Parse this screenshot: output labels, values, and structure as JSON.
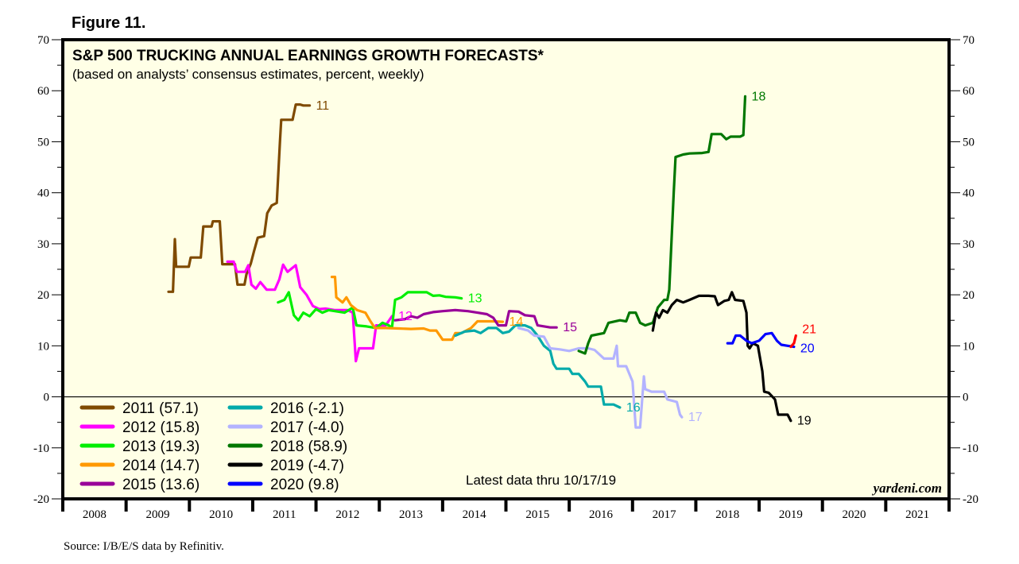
{
  "figure_label": "Figure 11.",
  "source": "Source: I/B/E/S data by Refinitiv.",
  "chart_data": {
    "type": "line",
    "title": "S&P 500 TRUCKING ANNUAL EARNINGS GROWTH FORECASTS*",
    "subtitle": "(based on analysts’ consensus estimates, percent, weekly)",
    "xlabel": "",
    "ylabel": "",
    "xlim": [
      2008,
      2022
    ],
    "ylim": [
      -20,
      70
    ],
    "yticks": [
      70,
      60,
      50,
      40,
      30,
      20,
      10,
      0,
      -10,
      -20
    ],
    "ytick_labels": [
      "70",
      "60",
      "50",
      "40",
      "30",
      "20",
      "10",
      "0",
      "-10",
      "-20"
    ],
    "xtick_labels": [
      "2008",
      "2009",
      "2010",
      "2011",
      "2012",
      "2013",
      "2014",
      "2015",
      "2016",
      "2017",
      "2018",
      "2019",
      "2020",
      "2021"
    ],
    "zero_line": true,
    "grid": false,
    "background": "#ffffe6",
    "annotation": "Latest data thru 10/17/19",
    "brand": "yardeni.com",
    "legend_position": "bottom-left",
    "series": [
      {
        "name": "2011",
        "legend": "2011 (57.1)",
        "end_label": "11",
        "color": "#7f4a00",
        "in_legend": true,
        "points": [
          [
            2009.67,
            20.6
          ],
          [
            2009.74,
            20.6
          ],
          [
            2009.77,
            30.9
          ],
          [
            2009.79,
            25.5
          ],
          [
            2009.84,
            25.5
          ],
          [
            2009.99,
            25.5
          ],
          [
            2010.02,
            27.3
          ],
          [
            2010.18,
            27.3
          ],
          [
            2010.22,
            33.4
          ],
          [
            2010.35,
            33.4
          ],
          [
            2010.37,
            34.4
          ],
          [
            2010.48,
            34.4
          ],
          [
            2010.52,
            26.0
          ],
          [
            2010.72,
            26.0
          ],
          [
            2010.76,
            22.0
          ],
          [
            2010.87,
            22.0
          ],
          [
            2010.9,
            24.0
          ],
          [
            2010.97,
            26.1
          ],
          [
            2011.02,
            28.5
          ],
          [
            2011.08,
            31.2
          ],
          [
            2011.18,
            31.5
          ],
          [
            2011.23,
            36.0
          ],
          [
            2011.3,
            37.5
          ],
          [
            2011.38,
            38.0
          ],
          [
            2011.43,
            50.0
          ],
          [
            2011.45,
            54.3
          ],
          [
            2011.63,
            54.3
          ],
          [
            2011.68,
            57.3
          ],
          [
            2011.75,
            57.3
          ],
          [
            2011.8,
            57.1
          ],
          [
            2011.9,
            57.1
          ]
        ]
      },
      {
        "name": "2012",
        "legend": "2012 (15.8)",
        "end_label": "12",
        "color": "#ff00ff",
        "in_legend": true,
        "points": [
          [
            2010.6,
            26.5
          ],
          [
            2010.7,
            26.5
          ],
          [
            2010.75,
            24.5
          ],
          [
            2010.88,
            24.5
          ],
          [
            2010.93,
            25.8
          ],
          [
            2010.98,
            22.0
          ],
          [
            2011.05,
            21.2
          ],
          [
            2011.12,
            22.5
          ],
          [
            2011.22,
            21.0
          ],
          [
            2011.35,
            21.0
          ],
          [
            2011.42,
            23.0
          ],
          [
            2011.48,
            25.9
          ],
          [
            2011.55,
            24.5
          ],
          [
            2011.68,
            25.8
          ],
          [
            2011.75,
            21.5
          ],
          [
            2011.85,
            20.0
          ],
          [
            2011.95,
            17.8
          ],
          [
            2012.05,
            17.2
          ],
          [
            2012.15,
            17.3
          ],
          [
            2012.3,
            17.0
          ],
          [
            2012.5,
            17.0
          ],
          [
            2012.58,
            16.5
          ],
          [
            2012.63,
            7.0
          ],
          [
            2012.68,
            9.5
          ],
          [
            2012.9,
            9.5
          ],
          [
            2012.95,
            14.0
          ],
          [
            2013.1,
            14.0
          ],
          [
            2013.2,
            15.8
          ]
        ]
      },
      {
        "name": "2013",
        "legend": "2013 (19.3)",
        "end_label": "13",
        "color": "#00ee00",
        "in_legend": true,
        "points": [
          [
            2011.4,
            18.5
          ],
          [
            2011.5,
            19.0
          ],
          [
            2011.57,
            20.5
          ],
          [
            2011.65,
            16.0
          ],
          [
            2011.72,
            15.0
          ],
          [
            2011.8,
            16.5
          ],
          [
            2011.9,
            15.8
          ],
          [
            2012.0,
            17.2
          ],
          [
            2012.1,
            16.5
          ],
          [
            2012.2,
            17.0
          ],
          [
            2012.3,
            16.8
          ],
          [
            2012.45,
            16.5
          ],
          [
            2012.58,
            17.5
          ],
          [
            2012.64,
            14.0
          ],
          [
            2012.8,
            13.8
          ],
          [
            2012.95,
            13.5
          ],
          [
            2013.05,
            14.5
          ],
          [
            2013.15,
            14.0
          ],
          [
            2013.2,
            13.5
          ],
          [
            2013.25,
            19.0
          ],
          [
            2013.35,
            19.5
          ],
          [
            2013.45,
            20.5
          ],
          [
            2013.6,
            20.5
          ],
          [
            2013.75,
            20.5
          ],
          [
            2013.85,
            19.8
          ],
          [
            2013.95,
            19.9
          ],
          [
            2014.05,
            19.6
          ],
          [
            2014.2,
            19.5
          ],
          [
            2014.3,
            19.3
          ]
        ]
      },
      {
        "name": "2014",
        "legend": "2014 (14.7)",
        "end_label": "14",
        "color": "#ff9900",
        "in_legend": true,
        "points": [
          [
            2012.25,
            23.5
          ],
          [
            2012.3,
            23.5
          ],
          [
            2012.32,
            19.5
          ],
          [
            2012.42,
            18.5
          ],
          [
            2012.48,
            19.5
          ],
          [
            2012.55,
            18.0
          ],
          [
            2012.65,
            17.0
          ],
          [
            2012.78,
            16.5
          ],
          [
            2012.85,
            15.0
          ],
          [
            2012.93,
            13.5
          ],
          [
            2013.1,
            13.5
          ],
          [
            2013.3,
            13.4
          ],
          [
            2013.5,
            13.3
          ],
          [
            2013.7,
            13.4
          ],
          [
            2013.8,
            13.0
          ],
          [
            2013.9,
            13.0
          ],
          [
            2014.0,
            11.2
          ],
          [
            2014.15,
            11.2
          ],
          [
            2014.2,
            12.5
          ],
          [
            2014.3,
            12.5
          ],
          [
            2014.45,
            13.5
          ],
          [
            2014.55,
            14.8
          ],
          [
            2014.8,
            14.8
          ],
          [
            2014.95,
            14.7
          ]
        ]
      },
      {
        "name": "2015",
        "legend": "2015 (13.6)",
        "end_label": "15",
        "color": "#990099",
        "in_legend": true,
        "points": [
          [
            2013.25,
            15.0
          ],
          [
            2013.4,
            15.2
          ],
          [
            2013.5,
            15.8
          ],
          [
            2013.6,
            15.5
          ],
          [
            2013.7,
            16.2
          ],
          [
            2013.85,
            16.6
          ],
          [
            2014.0,
            16.8
          ],
          [
            2014.2,
            17.0
          ],
          [
            2014.4,
            16.8
          ],
          [
            2014.55,
            16.5
          ],
          [
            2014.7,
            16.2
          ],
          [
            2014.8,
            15.5
          ],
          [
            2014.88,
            14.0
          ],
          [
            2015.0,
            14.0
          ],
          [
            2015.05,
            16.8
          ],
          [
            2015.2,
            16.7
          ],
          [
            2015.3,
            16.0
          ],
          [
            2015.45,
            15.8
          ],
          [
            2015.5,
            14.0
          ],
          [
            2015.7,
            13.6
          ],
          [
            2015.8,
            13.6
          ]
        ]
      },
      {
        "name": "2016",
        "legend": "2016 (-2.1)",
        "end_label": "16",
        "color": "#00aaaa",
        "in_legend": true,
        "points": [
          [
            2014.2,
            12.0
          ],
          [
            2014.35,
            12.8
          ],
          [
            2014.5,
            13.0
          ],
          [
            2014.6,
            12.5
          ],
          [
            2014.72,
            13.5
          ],
          [
            2014.85,
            13.5
          ],
          [
            2014.95,
            12.5
          ],
          [
            2015.05,
            12.8
          ],
          [
            2015.15,
            14.0
          ],
          [
            2015.3,
            14.0
          ],
          [
            2015.4,
            13.5
          ],
          [
            2015.5,
            12.0
          ],
          [
            2015.6,
            10.0
          ],
          [
            2015.7,
            9.0
          ],
          [
            2015.75,
            6.5
          ],
          [
            2015.8,
            5.5
          ],
          [
            2016.0,
            5.5
          ],
          [
            2016.05,
            4.5
          ],
          [
            2016.15,
            4.5
          ],
          [
            2016.25,
            3.0
          ],
          [
            2016.3,
            2.0
          ],
          [
            2016.5,
            2.0
          ],
          [
            2016.55,
            -1.5
          ],
          [
            2016.7,
            -1.5
          ],
          [
            2016.8,
            -2.1
          ]
        ]
      },
      {
        "name": "2017",
        "legend": "2017 (-4.0)",
        "end_label": "17",
        "color": "#b3b3ff",
        "in_legend": true,
        "points": [
          [
            2015.2,
            13.5
          ],
          [
            2015.35,
            13.0
          ],
          [
            2015.45,
            12.0
          ],
          [
            2015.6,
            11.8
          ],
          [
            2015.7,
            9.5
          ],
          [
            2015.85,
            9.3
          ],
          [
            2016.0,
            9.0
          ],
          [
            2016.15,
            9.5
          ],
          [
            2016.3,
            9.5
          ],
          [
            2016.4,
            9.2
          ],
          [
            2016.55,
            7.5
          ],
          [
            2016.7,
            7.5
          ],
          [
            2016.75,
            10.0
          ],
          [
            2016.77,
            6.0
          ],
          [
            2016.9,
            6.0
          ],
          [
            2017.0,
            3.0
          ],
          [
            2017.05,
            -6.0
          ],
          [
            2017.12,
            -6.0
          ],
          [
            2017.15,
            -1.0
          ],
          [
            2017.18,
            4.0
          ],
          [
            2017.2,
            1.5
          ],
          [
            2017.3,
            1.0
          ],
          [
            2017.5,
            1.0
          ],
          [
            2017.55,
            -0.5
          ],
          [
            2017.7,
            -1.0
          ],
          [
            2017.75,
            -3.5
          ],
          [
            2017.78,
            -4.0
          ]
        ]
      },
      {
        "name": "2018",
        "legend": "2018 (58.9)",
        "end_label": "18",
        "color": "#007700",
        "in_legend": true,
        "points": [
          [
            2016.15,
            9.0
          ],
          [
            2016.25,
            8.5
          ],
          [
            2016.3,
            10.5
          ],
          [
            2016.35,
            12.0
          ],
          [
            2016.55,
            12.5
          ],
          [
            2016.62,
            14.5
          ],
          [
            2016.8,
            15.0
          ],
          [
            2016.9,
            14.8
          ],
          [
            2016.95,
            16.5
          ],
          [
            2017.05,
            16.5
          ],
          [
            2017.12,
            14.5
          ],
          [
            2017.2,
            14.0
          ],
          [
            2017.32,
            14.5
          ],
          [
            2017.4,
            17.5
          ],
          [
            2017.5,
            19.0
          ],
          [
            2017.55,
            19.0
          ],
          [
            2017.58,
            21.0
          ],
          [
            2017.65,
            40.0
          ],
          [
            2017.68,
            47.0
          ],
          [
            2017.8,
            47.5
          ],
          [
            2017.9,
            47.7
          ],
          [
            2018.1,
            47.8
          ],
          [
            2018.2,
            48.0
          ],
          [
            2018.25,
            51.5
          ],
          [
            2018.4,
            51.5
          ],
          [
            2018.48,
            50.5
          ],
          [
            2018.55,
            51.0
          ],
          [
            2018.7,
            51.0
          ],
          [
            2018.75,
            51.3
          ],
          [
            2018.78,
            58.9
          ]
        ]
      },
      {
        "name": "2019",
        "legend": "2019 (-4.7)",
        "end_label": "19",
        "color": "#000000",
        "in_legend": true,
        "points": [
          [
            2017.32,
            13.0
          ],
          [
            2017.37,
            16.5
          ],
          [
            2017.42,
            15.5
          ],
          [
            2017.48,
            17.0
          ],
          [
            2017.55,
            16.5
          ],
          [
            2017.62,
            18.0
          ],
          [
            2017.7,
            19.0
          ],
          [
            2017.8,
            18.5
          ],
          [
            2017.9,
            19.0
          ],
          [
            2018.05,
            19.8
          ],
          [
            2018.2,
            19.8
          ],
          [
            2018.3,
            19.7
          ],
          [
            2018.35,
            18.0
          ],
          [
            2018.45,
            18.8
          ],
          [
            2018.52,
            19.0
          ],
          [
            2018.57,
            20.5
          ],
          [
            2018.62,
            19.0
          ],
          [
            2018.75,
            18.8
          ],
          [
            2018.8,
            16.5
          ],
          [
            2018.82,
            10.0
          ],
          [
            2018.85,
            9.5
          ],
          [
            2018.9,
            10.5
          ],
          [
            2018.98,
            10.0
          ],
          [
            2019.05,
            5.0
          ],
          [
            2019.08,
            1.0
          ],
          [
            2019.15,
            0.8
          ],
          [
            2019.25,
            -0.5
          ],
          [
            2019.3,
            -3.5
          ],
          [
            2019.45,
            -3.5
          ],
          [
            2019.5,
            -4.7
          ]
        ]
      },
      {
        "name": "2020",
        "legend": "2020 (9.8)",
        "end_label": "20",
        "color": "#0000ff",
        "in_legend": true,
        "points": [
          [
            2018.5,
            10.5
          ],
          [
            2018.58,
            10.5
          ],
          [
            2018.63,
            12.0
          ],
          [
            2018.7,
            12.0
          ],
          [
            2018.8,
            11.0
          ],
          [
            2018.88,
            10.5
          ],
          [
            2019.0,
            11.0
          ],
          [
            2019.1,
            12.3
          ],
          [
            2019.2,
            12.5
          ],
          [
            2019.28,
            11.0
          ],
          [
            2019.35,
            10.2
          ],
          [
            2019.45,
            10.0
          ],
          [
            2019.55,
            9.8
          ]
        ]
      },
      {
        "name": "2021",
        "legend": "",
        "end_label": "21",
        "color": "#ff0000",
        "in_legend": false,
        "points": [
          [
            2019.5,
            9.8
          ],
          [
            2019.55,
            10.5
          ],
          [
            2019.58,
            12.0
          ]
        ]
      }
    ]
  }
}
